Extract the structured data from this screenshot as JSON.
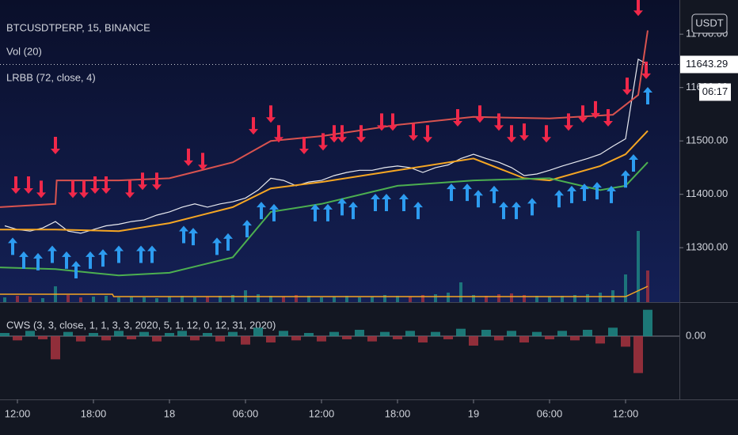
{
  "chart_data": [
    {
      "type": "line",
      "title": "BTCUSDTPERP, 15, BINANCE",
      "indicators": [
        "Vol (20)",
        "LRBB (72, close, 4)"
      ],
      "currency": "USDT",
      "countdown": "06:17",
      "xlim": [
        -1.375,
        52.25
      ],
      "xticks": [
        {
          "value": 0,
          "label": "12:00"
        },
        {
          "value": 6,
          "label": "18:00"
        },
        {
          "value": 12,
          "label": "18"
        },
        {
          "value": 18,
          "label": "06:00"
        },
        {
          "value": 24,
          "label": "12:00"
        },
        {
          "value": 30,
          "label": "18:00"
        },
        {
          "value": 36,
          "label": "19"
        },
        {
          "value": 42,
          "label": "06:00"
        },
        {
          "value": 48,
          "label": "12:00"
        }
      ],
      "ylim": [
        11198,
        11764
      ],
      "yticks": [
        {
          "value": 11300,
          "label": "11300.00"
        },
        {
          "value": 11400,
          "label": "11400.00"
        },
        {
          "value": 11500,
          "label": "11500.00"
        },
        {
          "value": 11600,
          "label": "11600.00"
        },
        {
          "value": 11700,
          "label": "11700.00"
        }
      ],
      "series": [
        {
          "color": "#e8eaf0",
          "x": [
            -1,
            0,
            1,
            2,
            3,
            4,
            5,
            6,
            7,
            8,
            9,
            10,
            11,
            12,
            13,
            14,
            15,
            16,
            17,
            18,
            19,
            20,
            21,
            22,
            23,
            24,
            25,
            26,
            27,
            28,
            29,
            30,
            31,
            32,
            33,
            34,
            35,
            36,
            37,
            38,
            39,
            40,
            41,
            42,
            43,
            44,
            45,
            46,
            47,
            48,
            49,
            49.75
          ],
          "values": [
            11341,
            11334,
            11331,
            11337,
            11349,
            11331,
            11327,
            11334,
            11341,
            11344,
            11349,
            11352,
            11361,
            11367,
            11376,
            11382,
            11376,
            11382,
            11386,
            11393,
            11408,
            11430,
            11426,
            11416,
            11423,
            11426,
            11435,
            11441,
            11445,
            11445,
            11450,
            11453,
            11450,
            11441,
            11450,
            11455,
            11467,
            11475,
            11467,
            11460,
            11450,
            11435,
            11438,
            11445,
            11453,
            11460,
            11467,
            11475,
            11490,
            11504,
            11653,
            11643.29
          ]
        },
        {
          "color": "#d9534f",
          "x": [
            -1.375,
            3,
            3.1,
            8,
            12,
            17,
            20,
            24,
            30,
            36,
            42,
            47,
            49,
            49.75
          ],
          "values": [
            11376,
            11382,
            11426,
            11426,
            11430,
            11460,
            11500,
            11509,
            11530,
            11545,
            11542,
            11549,
            11586,
            11707
          ]
        },
        {
          "color": "#f5a623",
          "x": [
            -1.375,
            3,
            8,
            12,
            17,
            20,
            24,
            30,
            36,
            40,
            42,
            46,
            48,
            49.75
          ],
          "values": [
            11334,
            11334,
            11331,
            11346,
            11376,
            11411,
            11423,
            11445,
            11467,
            11430,
            11426,
            11453,
            11475,
            11519
          ]
        },
        {
          "color": "#4caf50",
          "x": [
            -1.375,
            3,
            8,
            12,
            17,
            20,
            24,
            30,
            36,
            42,
            46,
            48,
            49.75
          ],
          "values": [
            11263,
            11260,
            11248,
            11253,
            11282,
            11367,
            11382,
            11416,
            11426,
            11430,
            11408,
            11416,
            11460
          ]
        }
      ],
      "signals": [
        {
          "direction": "down",
          "color": "#f0284a",
          "x": [
            -0.125,
            0.875,
            1.875,
            3,
            4.375,
            5.25,
            6.125,
            7,
            8.875,
            9.875,
            11,
            13.5,
            14.625,
            18.625,
            20,
            20.625,
            22.625,
            24.125,
            25,
            25.625,
            27.125,
            28.75,
            29.625,
            31.25,
            32.375,
            34.75,
            36.5,
            38,
            39,
            40,
            41.75,
            43.5,
            44.625,
            45.625,
            46.625,
            48.125,
            49,
            49.625
          ],
          "values": [
            11401,
            11401,
            11393,
            11475,
            11393,
            11393,
            11401,
            11401,
            11393,
            11408,
            11408,
            11453,
            11445,
            11512,
            11534,
            11497,
            11475,
            11482,
            11497,
            11497,
            11497,
            11519,
            11519,
            11500,
            11497,
            11527,
            11534,
            11519,
            11497,
            11500,
            11497,
            11519,
            11534,
            11542,
            11527,
            11586,
            11734,
            11616
          ]
        },
        {
          "direction": "up",
          "color": "#2d9cf0",
          "x": [
            -0.375,
            0.5,
            1.625,
            2.75,
            3.875,
            4.625,
            5.75,
            6.75,
            8,
            9.75,
            10.625,
            13.125,
            13.875,
            15.75,
            16.625,
            18.125,
            19.25,
            20.25,
            23.5,
            24.5,
            25.625,
            26.5,
            28.25,
            29.125,
            30.5,
            31.625,
            34.25,
            35.5,
            36.375,
            37.625,
            38.375,
            39.375,
            40.625,
            42.75,
            43.75,
            44.75,
            45.75,
            46.875,
            48,
            48.625,
            49.75
          ],
          "values": [
            11319,
            11293,
            11290,
            11304,
            11293,
            11275,
            11293,
            11297,
            11304,
            11304,
            11304,
            11341,
            11337,
            11319,
            11327,
            11352,
            11386,
            11382,
            11382,
            11382,
            11393,
            11386,
            11401,
            11401,
            11401,
            11386,
            11420,
            11420,
            11408,
            11416,
            11386,
            11386,
            11393,
            11408,
            11416,
            11420,
            11423,
            11416,
            11445,
            11475,
            11601
          ]
        }
      ],
      "volume": {
        "ylim": [
          0,
          100
        ],
        "up_color": "#1f8a86",
        "down_color": "#a8323e",
        "values": [
          6,
          8,
          7,
          5,
          20,
          9,
          6,
          7,
          8,
          6,
          7,
          6,
          5,
          7,
          8,
          6,
          7,
          8,
          9,
          15,
          10,
          8,
          7,
          9,
          8,
          6,
          7,
          8,
          6,
          7,
          9,
          8,
          7,
          9,
          10,
          12,
          25,
          9,
          8,
          10,
          11,
          9,
          8,
          7,
          8,
          9,
          10,
          12,
          15,
          35,
          90,
          40
        ],
        "ma": {
          "color": "#f5a623",
          "x": [
            -1.375,
            7.5,
            7.6,
            48,
            49.75
          ],
          "values": [
            10,
            10,
            7,
            7,
            20
          ]
        }
      }
    },
    {
      "type": "bar",
      "title": "CWS (3, 3, close, 1, 1, 3, 3, 2020, 5, 1, 12, 0, 12, 31, 2020)",
      "ylim": [
        -60,
        30
      ],
      "yticks": [
        {
          "value": 0,
          "label": "0.00"
        }
      ],
      "positive_color": "#1f8a86",
      "negative_color": "#a8323e",
      "x": [
        -1,
        0,
        1,
        2,
        3,
        4,
        5,
        6,
        7,
        8,
        9,
        10,
        11,
        12,
        13,
        14,
        15,
        16,
        17,
        18,
        19,
        20,
        21,
        22,
        23,
        24,
        25,
        26,
        27,
        28,
        29,
        30,
        31,
        32,
        33,
        34,
        35,
        36,
        37,
        38,
        39,
        40,
        41,
        42,
        43,
        44,
        45,
        46,
        47,
        48,
        49,
        49.75
      ],
      "values": [
        3,
        -4,
        5,
        -3,
        -22,
        4,
        -5,
        3,
        -4,
        5,
        -3,
        4,
        -5,
        3,
        5,
        -4,
        3,
        -5,
        4,
        -8,
        8,
        -6,
        5,
        -4,
        3,
        -5,
        4,
        -3,
        6,
        -5,
        4,
        -3,
        5,
        -6,
        4,
        -3,
        7,
        -9,
        6,
        -4,
        5,
        -6,
        4,
        -3,
        5,
        -4,
        6,
        -7,
        8,
        -10,
        -35,
        25
      ]
    }
  ]
}
